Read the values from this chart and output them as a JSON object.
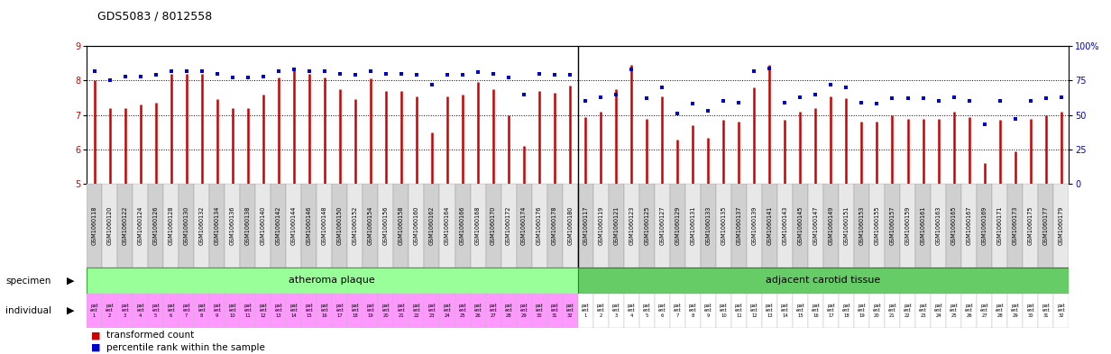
{
  "title": "GDS5083 / 8012558",
  "gsm_ids_atheroma": [
    "GSM1060118",
    "GSM1060120",
    "GSM1060122",
    "GSM1060124",
    "GSM1060126",
    "GSM1060128",
    "GSM1060130",
    "GSM1060132",
    "GSM1060134",
    "GSM1060136",
    "GSM1060138",
    "GSM1060140",
    "GSM1060142",
    "GSM1060144",
    "GSM1060146",
    "GSM1060148",
    "GSM1060150",
    "GSM1060152",
    "GSM1060154",
    "GSM1060156",
    "GSM1060158",
    "GSM1060160",
    "GSM1060162",
    "GSM1060164",
    "GSM1060166",
    "GSM1060168",
    "GSM1060170",
    "GSM1060172",
    "GSM1060174",
    "GSM1060176",
    "GSM1060178",
    "GSM1060180"
  ],
  "gsm_ids_carotid": [
    "GSM1060117",
    "GSM1060119",
    "GSM1060121",
    "GSM1060123",
    "GSM1060125",
    "GSM1060127",
    "GSM1060129",
    "GSM1060131",
    "GSM1060133",
    "GSM1060135",
    "GSM1060137",
    "GSM1060139",
    "GSM1060141",
    "GSM1060143",
    "GSM1060145",
    "GSM1060147",
    "GSM1060149",
    "GSM1060151",
    "GSM1060153",
    "GSM1060155",
    "GSM1060157",
    "GSM1060159",
    "GSM1060161",
    "GSM1060163",
    "GSM1060165",
    "GSM1060167",
    "GSM1060169",
    "GSM1060171",
    "GSM1060173",
    "GSM1060175",
    "GSM1060177",
    "GSM1060179"
  ],
  "bar_values_atheroma": [
    8.0,
    7.2,
    7.2,
    7.3,
    7.35,
    8.2,
    8.2,
    8.2,
    7.45,
    7.2,
    7.2,
    7.6,
    8.1,
    8.3,
    8.2,
    8.1,
    7.75,
    7.45,
    8.05,
    7.7,
    7.7,
    7.55,
    6.5,
    7.55,
    7.6,
    7.95,
    7.75,
    7.0,
    6.1,
    7.7,
    7.65,
    7.85
  ],
  "bar_values_carotid": [
    6.95,
    7.1,
    7.75,
    8.45,
    6.9,
    7.55,
    6.3,
    6.7,
    6.35,
    6.85,
    6.8,
    7.8,
    8.45,
    6.85,
    7.1,
    7.2,
    7.55,
    7.5,
    6.8,
    6.8,
    7.0,
    6.9,
    6.9,
    6.9,
    7.1,
    6.95,
    5.6,
    6.85,
    5.95,
    6.9,
    7.0,
    7.1
  ],
  "dot_values_atheroma": [
    82,
    75,
    78,
    78,
    79,
    82,
    82,
    82,
    80,
    77,
    77,
    78,
    82,
    83,
    82,
    82,
    80,
    79,
    82,
    80,
    80,
    79,
    72,
    79,
    79,
    81,
    80,
    77,
    65,
    80,
    79,
    79
  ],
  "dot_values_carotid": [
    60,
    63,
    65,
    83,
    62,
    70,
    51,
    58,
    53,
    60,
    59,
    82,
    84,
    59,
    63,
    65,
    72,
    70,
    59,
    58,
    62,
    62,
    62,
    60,
    63,
    60,
    43,
    60,
    47,
    60,
    62,
    63
  ],
  "ylim_left": [
    5,
    9
  ],
  "ylim_right": [
    0,
    100
  ],
  "yticks_left": [
    5,
    6,
    7,
    8,
    9
  ],
  "yticks_right": [
    0,
    25,
    50,
    75,
    100
  ],
  "bar_color": "#cc0000",
  "dot_color": "#0000cc",
  "atheroma_color": "#99ff99",
  "carotid_color": "#66cc66",
  "individual_atheroma_color": "#ff99ff",
  "individual_carotid_color": "#ffffff",
  "xlab_color_even": "#d0d0d0",
  "xlab_color_odd": "#e8e8e8",
  "specimen_label": "specimen",
  "individual_label": "individual",
  "atheroma_label": "atheroma plaque",
  "carotid_label": "adjacent carotid tissue",
  "legend_bar": "transformed count",
  "legend_dot": "percentile rank within the sample"
}
